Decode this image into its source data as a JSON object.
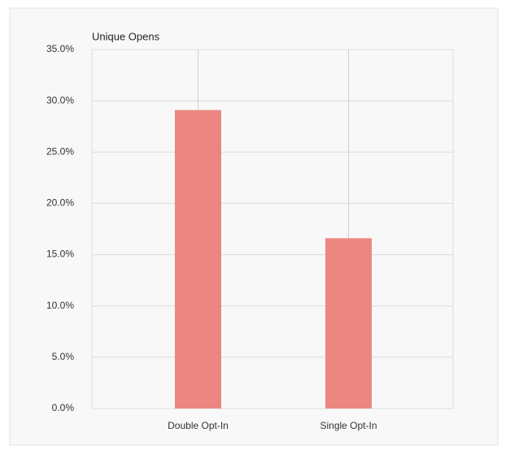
{
  "chart_data": {
    "type": "bar",
    "title": "Unique Opens",
    "categories": [
      "Double Opt-In",
      "Single Opt-In"
    ],
    "values": [
      29.1,
      16.6
    ],
    "color": "#ec8680",
    "ylim": [
      0,
      35
    ],
    "yticks": [
      {
        "value": 0,
        "label": "0.0%"
      },
      {
        "value": 5,
        "label": "5.0%"
      },
      {
        "value": 10,
        "label": "10.0%"
      },
      {
        "value": 15,
        "label": "15.0%"
      },
      {
        "value": 20,
        "label": "20.0%"
      },
      {
        "value": 25,
        "label": "25.0%"
      },
      {
        "value": 30,
        "label": "30.0%"
      },
      {
        "value": 35,
        "label": "35.0%"
      }
    ],
    "grid": true
  }
}
